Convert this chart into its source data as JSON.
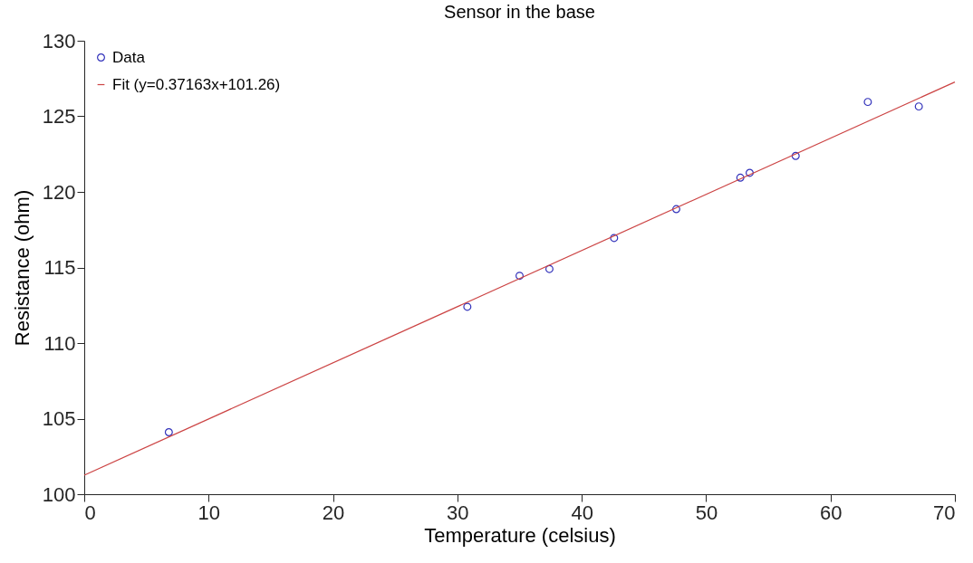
{
  "chart_data": {
    "type": "scatter",
    "title": "Sensor in the base",
    "xlabel": "Temperature (celsius)",
    "ylabel": "Resistance (ohm)",
    "x": [
      6.8,
      30.8,
      35.0,
      37.4,
      42.6,
      47.6,
      52.75,
      53.5,
      57.2,
      63.0,
      67.1
    ],
    "series": [
      {
        "name": "Data",
        "color": "#3333bb",
        "marker": "circle",
        "values": [
          104.1,
          112.4,
          114.45,
          114.9,
          116.95,
          118.86,
          120.94,
          121.26,
          122.38,
          125.95,
          125.65
        ]
      },
      {
        "name": "Fit (y=0.37163x+101.26)",
        "type": "line",
        "color": "#cc4444",
        "x": [
          0,
          70
        ],
        "values": [
          101.26,
          127.27
        ]
      }
    ],
    "xlim": [
      0,
      70
    ],
    "xticks": [
      0,
      10,
      20,
      30,
      40,
      50,
      60,
      70
    ],
    "ylim": [
      100,
      130
    ],
    "yticks": [
      100,
      105,
      110,
      115,
      120,
      125,
      130
    ],
    "grid": false,
    "legend": "top left",
    "line_style": "solid"
  }
}
